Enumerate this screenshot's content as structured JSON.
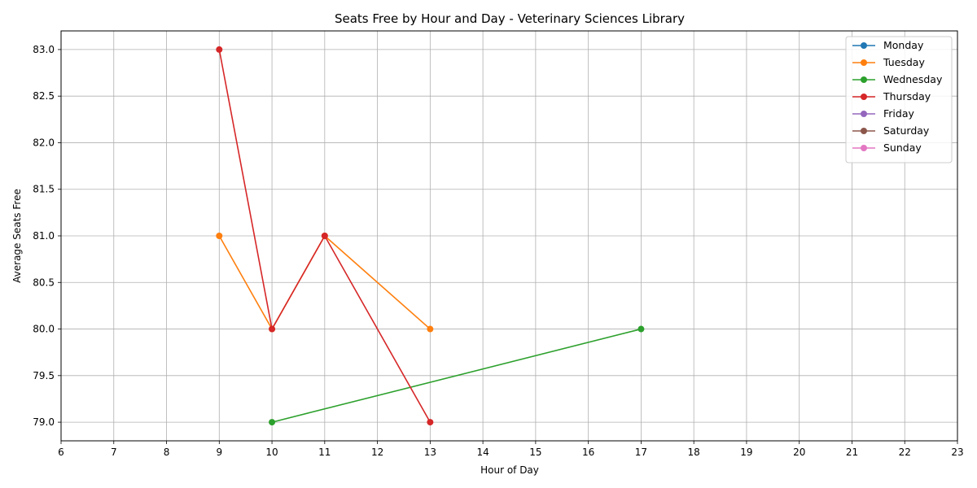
{
  "chart_data": {
    "type": "line",
    "title": "Seats Free by Hour and Day - Veterinary Sciences Library",
    "xlabel": "Hour of Day",
    "ylabel": "Average Seats Free",
    "xlim": [
      6,
      23
    ],
    "ylim": [
      78.8,
      83.2
    ],
    "x_ticks": [
      6,
      7,
      8,
      9,
      10,
      11,
      12,
      13,
      14,
      15,
      16,
      17,
      18,
      19,
      20,
      21,
      22,
      23
    ],
    "y_ticks": [
      79.0,
      79.5,
      80.0,
      80.5,
      81.0,
      81.5,
      82.0,
      82.5,
      83.0
    ],
    "y_tick_labels": [
      "79.0",
      "79.5",
      "80.0",
      "80.5",
      "81.0",
      "81.5",
      "82.0",
      "82.5",
      "83.0"
    ],
    "grid": true,
    "legend_position": "top-right",
    "series": [
      {
        "name": "Monday",
        "color": "#1f77b4",
        "x": [],
        "y": []
      },
      {
        "name": "Tuesday",
        "color": "#ff7f0e",
        "x": [
          9,
          10,
          11,
          13
        ],
        "y": [
          81,
          80,
          81,
          80
        ]
      },
      {
        "name": "Wednesday",
        "color": "#2ca02c",
        "x": [
          10,
          17
        ],
        "y": [
          79,
          80
        ]
      },
      {
        "name": "Thursday",
        "color": "#d62728",
        "x": [
          9,
          10,
          11,
          13
        ],
        "y": [
          83,
          80,
          81,
          79
        ]
      },
      {
        "name": "Friday",
        "color": "#9467bd",
        "x": [],
        "y": []
      },
      {
        "name": "Saturday",
        "color": "#8c564b",
        "x": [],
        "y": []
      },
      {
        "name": "Sunday",
        "color": "#e377c2",
        "x": [],
        "y": []
      }
    ]
  }
}
